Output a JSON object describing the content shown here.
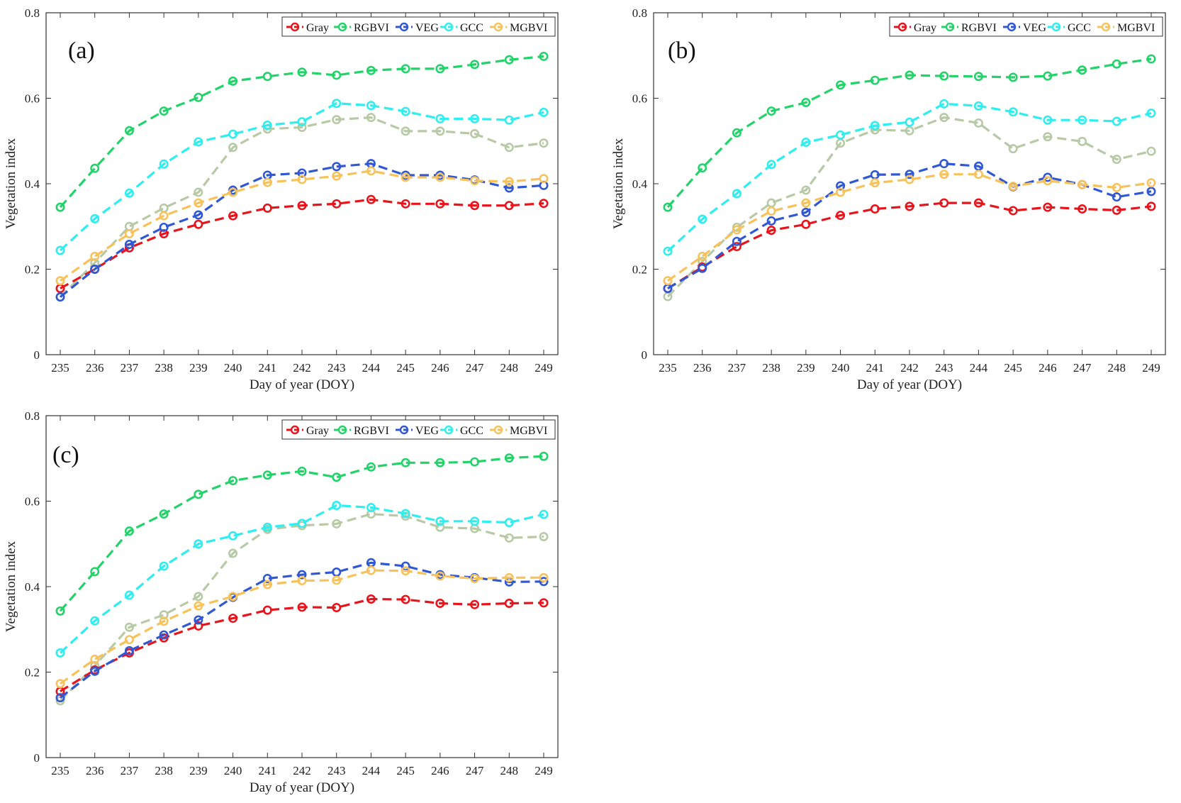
{
  "series_colors": {
    "Gray": "#e8141c",
    "RGBVI": "#22d36a",
    "VEG": "#3158d3",
    "GCC": "#2eeef0",
    "MGBVI": "#f7c25a",
    "unlabeled": "#b8c9a6"
  },
  "chart_data": [
    {
      "type": "line",
      "panel_label": "(a)",
      "xlabel": "Day of year (DOY)",
      "ylabel": "Vegetation index",
      "ylim": [
        0,
        0.8
      ],
      "yticks": [
        "0",
        "0.2",
        "0.4",
        "0.6",
        "0.8"
      ],
      "categories": [
        "235",
        "236",
        "237",
        "238",
        "239",
        "240",
        "241",
        "242",
        "243",
        "244",
        "245",
        "246",
        "247",
        "248",
        "249"
      ],
      "legend": [
        "Gray",
        "RGBVI",
        "VEG",
        "GCC",
        "MGBVI"
      ],
      "series": [
        {
          "name": "unlabeled",
          "values": [
            0.135,
            0.215,
            0.3,
            0.343,
            0.38,
            0.485,
            0.528,
            0.532,
            0.55,
            0.555,
            0.523,
            0.523,
            0.517,
            0.485,
            0.495
          ]
        },
        {
          "name": "Gray",
          "values": [
            0.155,
            0.2,
            0.25,
            0.283,
            0.305,
            0.325,
            0.343,
            0.349,
            0.353,
            0.363,
            0.353,
            0.353,
            0.349,
            0.349,
            0.354
          ]
        },
        {
          "name": "VEG",
          "values": [
            0.135,
            0.2,
            0.258,
            0.298,
            0.327,
            0.385,
            0.42,
            0.425,
            0.44,
            0.447,
            0.42,
            0.42,
            0.409,
            0.39,
            0.396
          ]
        },
        {
          "name": "MGBVI",
          "values": [
            0.173,
            0.23,
            0.283,
            0.325,
            0.355,
            0.38,
            0.403,
            0.41,
            0.418,
            0.43,
            0.415,
            0.415,
            0.407,
            0.405,
            0.412
          ]
        },
        {
          "name": "GCC",
          "values": [
            0.244,
            0.318,
            0.378,
            0.446,
            0.498,
            0.516,
            0.537,
            0.545,
            0.588,
            0.583,
            0.569,
            0.552,
            0.552,
            0.549,
            0.567
          ]
        },
        {
          "name": "RGBVI",
          "values": [
            0.345,
            0.436,
            0.524,
            0.57,
            0.602,
            0.64,
            0.651,
            0.661,
            0.654,
            0.665,
            0.669,
            0.669,
            0.679,
            0.69,
            0.698
          ]
        }
      ]
    },
    {
      "type": "line",
      "panel_label": "(b)",
      "xlabel": "Day of year (DOY)",
      "ylabel": "Vegetation index",
      "ylim": [
        0,
        0.8
      ],
      "yticks": [
        "0",
        "0.2",
        "0.4",
        "0.6",
        "0.8"
      ],
      "categories": [
        "235",
        "236",
        "237",
        "238",
        "239",
        "240",
        "241",
        "242",
        "243",
        "244",
        "245",
        "246",
        "247",
        "248",
        "249"
      ],
      "legend": [
        "Gray",
        "RGBVI",
        "VEG",
        "GCC",
        "MGBVI"
      ],
      "series": [
        {
          "name": "unlabeled",
          "values": [
            0.136,
            0.218,
            0.298,
            0.355,
            0.385,
            0.495,
            0.526,
            0.524,
            0.555,
            0.542,
            0.482,
            0.51,
            0.499,
            0.457,
            0.476
          ]
        },
        {
          "name": "Gray",
          "values": [
            0.155,
            0.205,
            0.253,
            0.291,
            0.305,
            0.326,
            0.341,
            0.347,
            0.355,
            0.355,
            0.337,
            0.345,
            0.341,
            0.338,
            0.347
          ]
        },
        {
          "name": "VEG",
          "values": [
            0.155,
            0.202,
            0.265,
            0.313,
            0.333,
            0.395,
            0.421,
            0.422,
            0.447,
            0.441,
            0.393,
            0.415,
            0.398,
            0.369,
            0.382
          ]
        },
        {
          "name": "MGBVI",
          "values": [
            0.173,
            0.23,
            0.292,
            0.336,
            0.355,
            0.38,
            0.402,
            0.41,
            0.422,
            0.422,
            0.394,
            0.407,
            0.398,
            0.391,
            0.402
          ]
        },
        {
          "name": "GCC",
          "values": [
            0.242,
            0.317,
            0.377,
            0.445,
            0.497,
            0.514,
            0.536,
            0.544,
            0.587,
            0.582,
            0.568,
            0.549,
            0.549,
            0.546,
            0.565
          ]
        },
        {
          "name": "RGBVI",
          "values": [
            0.345,
            0.437,
            0.519,
            0.57,
            0.59,
            0.631,
            0.642,
            0.654,
            0.652,
            0.651,
            0.649,
            0.652,
            0.666,
            0.68,
            0.692
          ]
        }
      ]
    },
    {
      "type": "line",
      "panel_label": "(c)",
      "xlabel": "Day of year (DOY)",
      "ylabel": "Vegetation index",
      "ylim": [
        0,
        0.8
      ],
      "yticks": [
        "0",
        "0.2",
        "0.4",
        "0.6",
        "0.8"
      ],
      "categories": [
        "235",
        "236",
        "237",
        "238",
        "239",
        "240",
        "241",
        "242",
        "243",
        "244",
        "245",
        "246",
        "247",
        "248",
        "249"
      ],
      "legend": [
        "Gray",
        "RGBVI",
        "VEG",
        "GCC",
        "MGBVI"
      ],
      "series": [
        {
          "name": "unlabeled",
          "values": [
            0.133,
            0.215,
            0.305,
            0.334,
            0.377,
            0.478,
            0.534,
            0.543,
            0.547,
            0.57,
            0.565,
            0.539,
            0.536,
            0.514,
            0.517
          ]
        },
        {
          "name": "Gray",
          "values": [
            0.155,
            0.205,
            0.245,
            0.28,
            0.308,
            0.326,
            0.345,
            0.352,
            0.351,
            0.371,
            0.37,
            0.361,
            0.358,
            0.361,
            0.362
          ]
        },
        {
          "name": "VEG",
          "values": [
            0.14,
            0.202,
            0.25,
            0.287,
            0.322,
            0.375,
            0.419,
            0.428,
            0.434,
            0.456,
            0.448,
            0.428,
            0.421,
            0.411,
            0.412
          ]
        },
        {
          "name": "MGBVI",
          "values": [
            0.173,
            0.23,
            0.276,
            0.319,
            0.355,
            0.377,
            0.405,
            0.414,
            0.415,
            0.438,
            0.437,
            0.425,
            0.419,
            0.421,
            0.421
          ]
        },
        {
          "name": "GCC",
          "values": [
            0.245,
            0.32,
            0.38,
            0.448,
            0.5,
            0.519,
            0.539,
            0.548,
            0.59,
            0.585,
            0.571,
            0.553,
            0.553,
            0.55,
            0.569
          ]
        },
        {
          "name": "RGBVI",
          "values": [
            0.343,
            0.435,
            0.53,
            0.57,
            0.616,
            0.648,
            0.661,
            0.67,
            0.656,
            0.68,
            0.69,
            0.69,
            0.692,
            0.701,
            0.705
          ]
        }
      ]
    }
  ]
}
